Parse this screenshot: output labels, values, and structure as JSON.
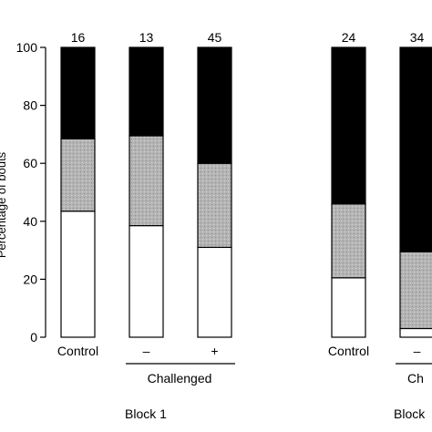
{
  "chart_data": {
    "type": "bar",
    "stacked": true,
    "ylabel": "Percentage of bouts",
    "ylim": [
      0,
      100
    ],
    "yticks": [
      0,
      20,
      40,
      60,
      80,
      100
    ],
    "grid": false,
    "categories": [
      "Control",
      "–",
      "+",
      "Control",
      "–"
    ],
    "counts": [
      "16",
      "13",
      "45",
      "24",
      "34"
    ],
    "series": [
      {
        "fill": "#ffffff",
        "values": [
          43.5,
          38.5,
          31,
          20.5,
          3
        ]
      },
      {
        "fill": "#b4b4b4",
        "values": [
          25,
          31,
          29,
          25.5,
          26.5
        ]
      },
      {
        "fill": "#000000",
        "values": [
          31.5,
          30.5,
          40,
          54,
          70.5
        ]
      }
    ],
    "group_labels": [
      {
        "text": "Challenged",
        "block": 0
      },
      {
        "text": "Ch",
        "block": 1
      }
    ],
    "block_labels": [
      "Block 1",
      "Block"
    ]
  }
}
